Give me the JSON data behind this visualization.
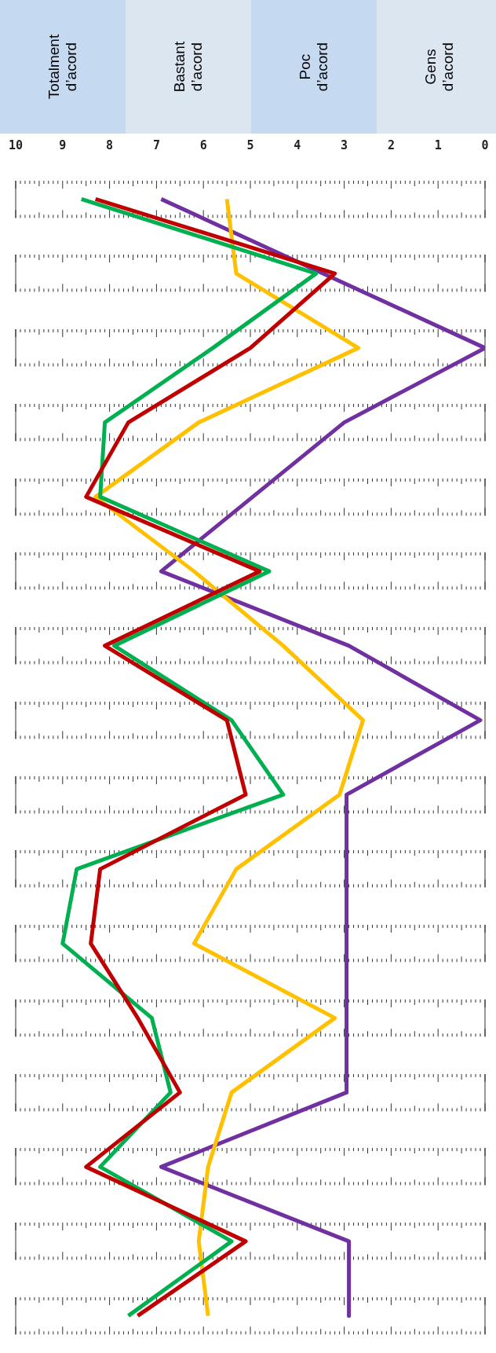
{
  "chart_data": {
    "type": "line",
    "orientation": "horizontal",
    "annotations": [
      "Totalment d’acord",
      "Bastant d’acord",
      "Poc d’acord",
      "Gens d’acord"
    ],
    "categories": [
      null,
      null,
      null,
      null,
      null,
      null,
      null,
      null,
      null,
      null,
      null,
      null,
      null,
      null,
      null,
      null
    ],
    "xlim": [
      10,
      0
    ],
    "xticks": [
      10,
      9,
      8,
      7,
      6,
      5,
      4,
      3,
      2,
      1,
      0
    ],
    "grid": false,
    "legend": false,
    "marker": "none",
    "series": [
      {
        "color": "#c00000",
        "values": [
          8.3,
          3.2,
          5,
          7.6,
          8.5,
          4.8,
          8.1,
          5.5,
          5.1,
          8.2,
          8.4,
          7.4,
          6.5,
          8.5,
          5.1,
          7.4
        ]
      },
      {
        "color": "#00b050",
        "values": [
          8.6,
          3.6,
          5.8,
          8.1,
          8.2,
          4.6,
          7.9,
          5.4,
          4.3,
          8.7,
          9,
          7.1,
          6.7,
          8.2,
          5.4,
          7.6
        ]
      },
      {
        "color": "#ffc000",
        "values": [
          5.5,
          5.3,
          2.7,
          6.1,
          8.3,
          6.2,
          4.3,
          2.6,
          3.1,
          5.3,
          6.2,
          3.2,
          5.4,
          5.9,
          6.1,
          5.9
        ]
      },
      {
        "color": "#7030a0",
        "values": [
          6.9,
          null,
          0,
          3,
          null,
          6.9,
          2.9,
          0.1,
          2.95,
          2.95,
          2.95,
          2.95,
          2.95,
          6.9,
          2.9,
          2.9
        ]
      }
    ]
  }
}
